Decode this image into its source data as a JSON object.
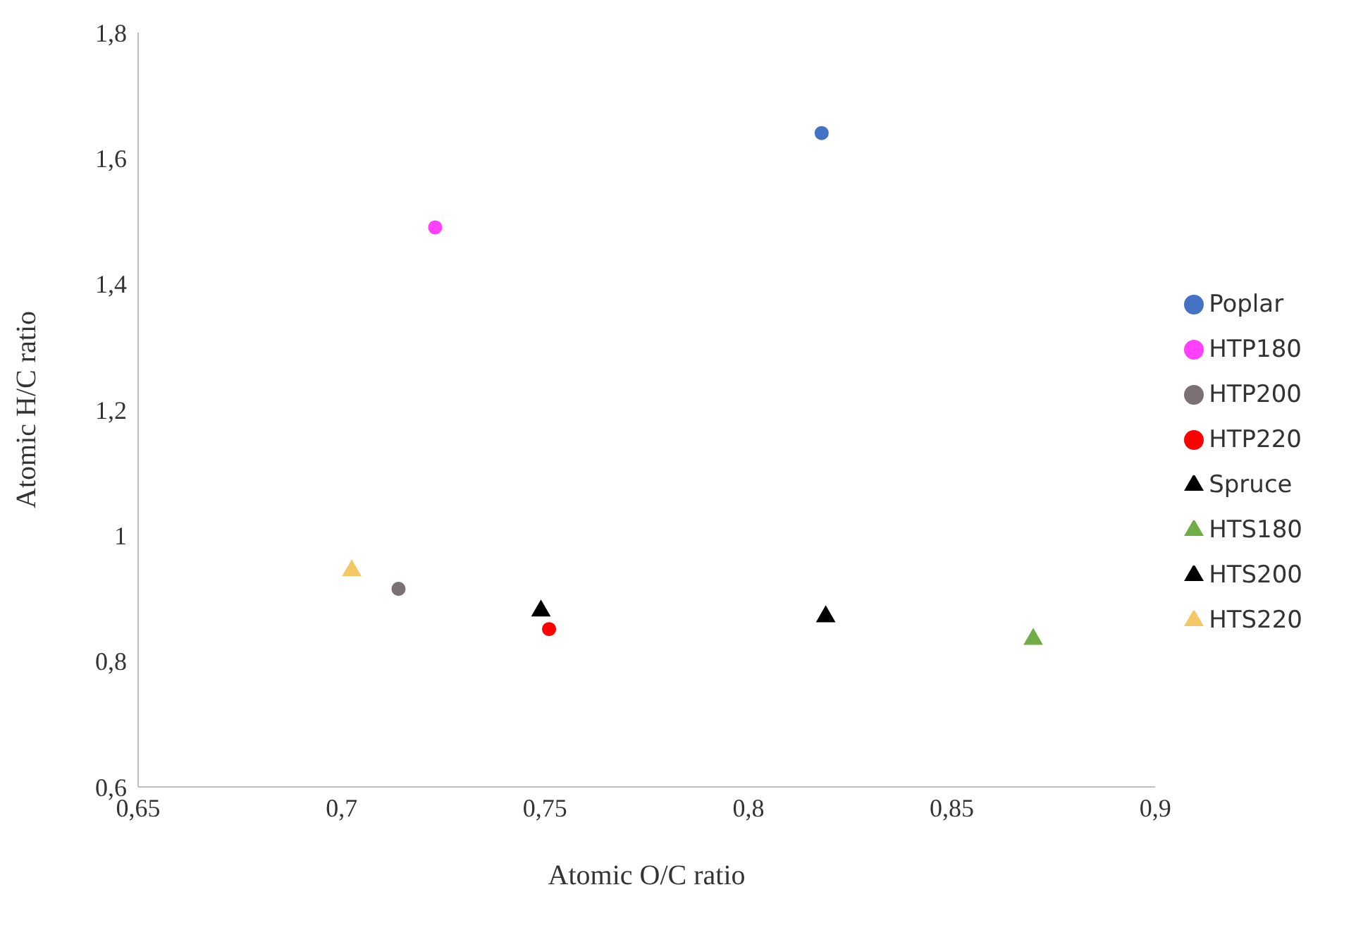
{
  "chart_data": {
    "type": "scatter",
    "xlabel": "Atomic O/C ratio",
    "ylabel": "Atomic H/C ratio",
    "xlim": [
      0.65,
      0.9
    ],
    "xticks": [
      {
        "value": 0.65,
        "label": "0,65"
      },
      {
        "value": 0.7,
        "label": "0,7"
      },
      {
        "value": 0.75,
        "label": "0,75"
      },
      {
        "value": 0.8,
        "label": "0,8"
      },
      {
        "value": 0.85,
        "label": "0,85"
      },
      {
        "value": 0.9,
        "label": "0,9"
      }
    ],
    "ylim": [
      0.6,
      1.8
    ],
    "yticks": [
      {
        "value": 0.6,
        "label": "0,6"
      },
      {
        "value": 0.8,
        "label": "0,8"
      },
      {
        "value": 1,
        "label": "1"
      },
      {
        "value": 1.2,
        "label": "1,2"
      },
      {
        "value": 1.4,
        "label": "1,4"
      },
      {
        "value": 1.6,
        "label": "1,6"
      },
      {
        "value": 1.8,
        "label": "1,8"
      }
    ],
    "grid": false,
    "legend": "right",
    "series": [
      {
        "name": "Poplar",
        "color": "#4472c4",
        "marker": "circle",
        "x": [
          0.818
        ],
        "values": [
          1.64
        ]
      },
      {
        "name": "HTP180",
        "color": "#ff40ff",
        "marker": "circle",
        "x": [
          0.723
        ],
        "values": [
          1.49
        ]
      },
      {
        "name": "HTP200",
        "color": "#7b7173",
        "marker": "circle",
        "x": [
          0.714
        ],
        "values": [
          0.915
        ]
      },
      {
        "name": "HTP220",
        "color": "#ff0000",
        "marker": "circle",
        "x": [
          0.751
        ],
        "values": [
          0.851
        ]
      },
      {
        "name": "Spruce",
        "color": "#000000",
        "marker": "triangle",
        "x": [
          0.749
        ],
        "values": [
          0.88
        ]
      },
      {
        "name": "HTS180",
        "color": "#70ad47",
        "marker": "triangle",
        "x": [
          0.87
        ],
        "values": [
          0.835
        ]
      },
      {
        "name": "HTS200",
        "color": "#000000",
        "marker": "triangle",
        "x": [
          0.819
        ],
        "values": [
          0.871
        ]
      },
      {
        "name": "HTS220",
        "color": "#f4c766",
        "marker": "triangle",
        "x": [
          0.7025
        ],
        "values": [
          0.944
        ]
      }
    ]
  }
}
